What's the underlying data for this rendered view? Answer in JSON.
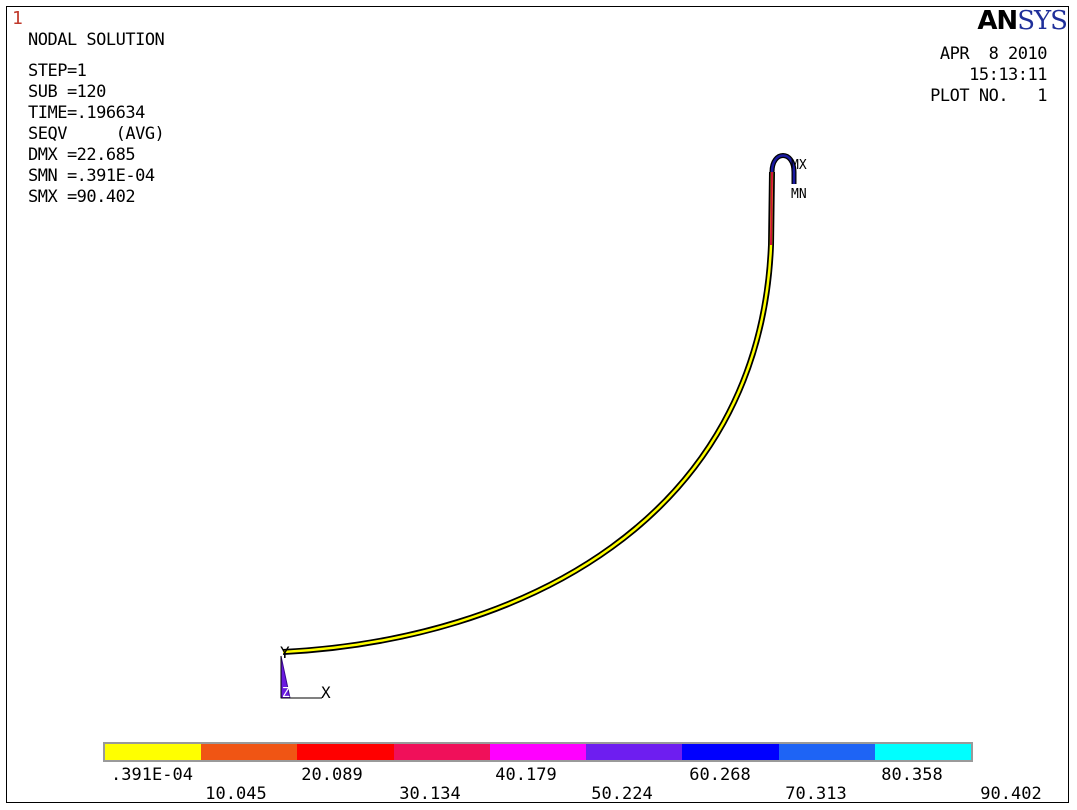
{
  "window_number": "1",
  "logo": {
    "an": "AN",
    "sys": "SYS"
  },
  "info": {
    "title": "NODAL SOLUTION",
    "step": "STEP=1",
    "sub": "SUB =120",
    "time": "TIME=.196634",
    "seqv": "SEQV     (AVG)",
    "dmx": "DMX =22.685",
    "smn": "SMN =.391E-04",
    "smx": "SMX =90.402"
  },
  "header": {
    "date": "APR  8 2010",
    "time": "15:13:11",
    "plot_no": "PLOT NO.   1"
  },
  "markers": {
    "mx": "MX",
    "mn": "MN"
  },
  "triad": {
    "y": "Y",
    "x": "X",
    "z": "Z"
  },
  "legend": {
    "colors": [
      "#ffff00",
      "#f05514",
      "#ff0000",
      "#f0105a",
      "#ff00ff",
      "#6e1ef0",
      "#0000ff",
      "#1e64f5",
      "#00ffff"
    ],
    "labels_top": [
      ".391E-04",
      "20.089",
      "40.179",
      "60.268",
      "80.358"
    ],
    "labels_bottom": [
      "10.045",
      "30.134",
      "50.224",
      "70.313",
      "90.402"
    ]
  }
}
